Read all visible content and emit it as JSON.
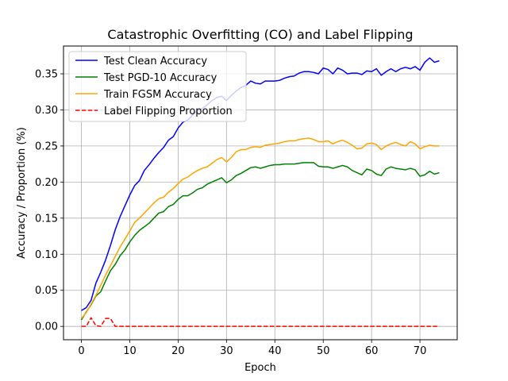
{
  "chart_data": {
    "type": "line",
    "title": "Catastrophic Overfitting (CO) and Label Flipping",
    "xlabel": "Epoch",
    "ylabel": "Accuracy / Proportion (%)",
    "xlim": [
      -3.7,
      77.7
    ],
    "ylim": [
      -0.0185,
      0.3885
    ],
    "xticks": [
      0,
      10,
      20,
      30,
      40,
      50,
      60,
      70
    ],
    "yticks": [
      0.0,
      0.05,
      0.1,
      0.15,
      0.2,
      0.25,
      0.3,
      0.35
    ],
    "ytick_labels": [
      "0.00",
      "0.05",
      "0.10",
      "0.15",
      "0.20",
      "0.25",
      "0.30",
      "0.35"
    ],
    "grid": true,
    "legend_position": "upper-left",
    "series": [
      {
        "name": "Test Clean Accuracy",
        "color": "#0000ff",
        "dash": "solid",
        "x": [
          0,
          1,
          2,
          3,
          4,
          5,
          6,
          7,
          8,
          9,
          10,
          11,
          12,
          13,
          14,
          15,
          16,
          17,
          18,
          19,
          20,
          21,
          22,
          23,
          24,
          25,
          26,
          27,
          28,
          29,
          30,
          31,
          32,
          33,
          34,
          35,
          36,
          37,
          38,
          39,
          40,
          41,
          42,
          43,
          44,
          45,
          46,
          47,
          48,
          49,
          50,
          51,
          52,
          53,
          54,
          55,
          56,
          57,
          58,
          59,
          60,
          61,
          62,
          63,
          64,
          65,
          66,
          67,
          68,
          69,
          70,
          71,
          72,
          73,
          74
        ],
        "values": [
          0.022,
          0.026,
          0.036,
          0.06,
          0.075,
          0.092,
          0.112,
          0.134,
          0.152,
          0.167,
          0.182,
          0.195,
          0.202,
          0.216,
          0.224,
          0.233,
          0.241,
          0.248,
          0.258,
          0.263,
          0.275,
          0.283,
          0.286,
          0.293,
          0.299,
          0.302,
          0.307,
          0.313,
          0.317,
          0.319,
          0.313,
          0.32,
          0.326,
          0.331,
          0.334,
          0.34,
          0.337,
          0.336,
          0.34,
          0.34,
          0.34,
          0.341,
          0.344,
          0.346,
          0.347,
          0.351,
          0.353,
          0.353,
          0.352,
          0.35,
          0.358,
          0.356,
          0.35,
          0.358,
          0.355,
          0.35,
          0.351,
          0.351,
          0.349,
          0.354,
          0.353,
          0.357,
          0.348,
          0.353,
          0.357,
          0.353,
          0.357,
          0.359,
          0.357,
          0.36,
          0.355,
          0.366,
          0.372,
          0.366,
          0.368
        ]
      },
      {
        "name": "Test PGD-10 Accuracy",
        "color": "#008000",
        "dash": "solid",
        "x": [
          0,
          1,
          2,
          3,
          4,
          5,
          6,
          7,
          8,
          9,
          10,
          11,
          12,
          13,
          14,
          15,
          16,
          17,
          18,
          19,
          20,
          21,
          22,
          23,
          24,
          25,
          26,
          27,
          28,
          29,
          30,
          31,
          32,
          33,
          34,
          35,
          36,
          37,
          38,
          39,
          40,
          41,
          42,
          43,
          44,
          45,
          46,
          47,
          48,
          49,
          50,
          51,
          52,
          53,
          54,
          55,
          56,
          57,
          58,
          59,
          60,
          61,
          62,
          63,
          64,
          65,
          66,
          67,
          68,
          69,
          70,
          71,
          72,
          73,
          74
        ],
        "values": [
          0.009,
          0.02,
          0.03,
          0.042,
          0.048,
          0.063,
          0.077,
          0.086,
          0.098,
          0.106,
          0.117,
          0.126,
          0.133,
          0.138,
          0.143,
          0.15,
          0.157,
          0.159,
          0.166,
          0.169,
          0.176,
          0.181,
          0.181,
          0.185,
          0.19,
          0.192,
          0.197,
          0.2,
          0.203,
          0.206,
          0.199,
          0.203,
          0.209,
          0.212,
          0.216,
          0.22,
          0.221,
          0.219,
          0.221,
          0.223,
          0.224,
          0.224,
          0.225,
          0.225,
          0.225,
          0.226,
          0.227,
          0.227,
          0.227,
          0.222,
          0.221,
          0.221,
          0.219,
          0.221,
          0.223,
          0.221,
          0.216,
          0.213,
          0.21,
          0.218,
          0.216,
          0.211,
          0.209,
          0.218,
          0.221,
          0.219,
          0.218,
          0.217,
          0.219,
          0.217,
          0.208,
          0.21,
          0.215,
          0.211,
          0.213
        ]
      },
      {
        "name": "Train FGSM Accuracy",
        "color": "#ffa500",
        "dash": "solid",
        "x": [
          0,
          1,
          2,
          3,
          4,
          5,
          6,
          7,
          8,
          9,
          10,
          11,
          12,
          13,
          14,
          15,
          16,
          17,
          18,
          19,
          20,
          21,
          22,
          23,
          24,
          25,
          26,
          27,
          28,
          29,
          30,
          31,
          32,
          33,
          34,
          35,
          36,
          37,
          38,
          39,
          40,
          41,
          42,
          43,
          44,
          45,
          46,
          47,
          48,
          49,
          50,
          51,
          52,
          53,
          54,
          55,
          56,
          57,
          58,
          59,
          60,
          61,
          62,
          63,
          64,
          65,
          66,
          67,
          68,
          69,
          70,
          71,
          72,
          73,
          74
        ],
        "values": [
          0.011,
          0.019,
          0.031,
          0.043,
          0.057,
          0.071,
          0.084,
          0.097,
          0.11,
          0.121,
          0.132,
          0.144,
          0.15,
          0.157,
          0.164,
          0.171,
          0.177,
          0.179,
          0.186,
          0.191,
          0.198,
          0.204,
          0.207,
          0.212,
          0.216,
          0.219,
          0.221,
          0.226,
          0.231,
          0.234,
          0.228,
          0.234,
          0.242,
          0.245,
          0.245,
          0.248,
          0.249,
          0.248,
          0.251,
          0.252,
          0.253,
          0.254,
          0.256,
          0.257,
          0.257,
          0.259,
          0.26,
          0.261,
          0.259,
          0.256,
          0.256,
          0.257,
          0.253,
          0.256,
          0.258,
          0.255,
          0.251,
          0.246,
          0.247,
          0.253,
          0.254,
          0.252,
          0.245,
          0.25,
          0.253,
          0.255,
          0.252,
          0.25,
          0.256,
          0.253,
          0.246,
          0.249,
          0.251,
          0.25,
          0.25
        ]
      },
      {
        "name": "Label Flipping Proportion",
        "color": "#ff0000",
        "dash": "dashed",
        "x": [
          0,
          1,
          2,
          3,
          4,
          5,
          6,
          7,
          8,
          9,
          10,
          11,
          12,
          13,
          14,
          15,
          16,
          17,
          18,
          19,
          20,
          21,
          22,
          23,
          24,
          25,
          26,
          27,
          28,
          29,
          30,
          31,
          32,
          33,
          34,
          35,
          36,
          37,
          38,
          39,
          40,
          41,
          42,
          43,
          44,
          45,
          46,
          47,
          48,
          49,
          50,
          51,
          52,
          53,
          54,
          55,
          56,
          57,
          58,
          59,
          60,
          61,
          62,
          63,
          64,
          65,
          66,
          67,
          68,
          69,
          70,
          71,
          72,
          73,
          74
        ],
        "values": [
          0.0,
          0.0,
          0.012,
          0.001,
          0.0,
          0.011,
          0.011,
          0.0,
          0.0,
          0.0,
          0.0,
          0.0,
          0.0,
          0.0,
          0.0,
          0.0,
          0.0,
          0.0,
          0.0,
          0.0,
          0.0,
          0.0,
          0.0,
          0.0,
          0.0,
          0.0,
          0.0,
          0.0,
          0.0,
          0.0,
          0.0,
          0.0,
          0.0,
          0.0,
          0.0,
          0.0,
          0.0,
          0.0,
          0.0,
          0.0,
          0.0,
          0.0,
          0.0,
          0.0,
          0.0,
          0.0,
          0.0,
          0.0,
          0.0,
          0.0,
          0.0,
          0.0,
          0.0,
          0.0,
          0.0,
          0.0,
          0.0,
          0.0,
          0.0,
          0.0,
          0.0,
          0.0,
          0.0,
          0.0,
          0.0,
          0.0,
          0.0,
          0.0,
          0.0,
          0.0,
          0.0,
          0.0,
          0.0,
          0.0,
          0.0
        ]
      }
    ]
  }
}
